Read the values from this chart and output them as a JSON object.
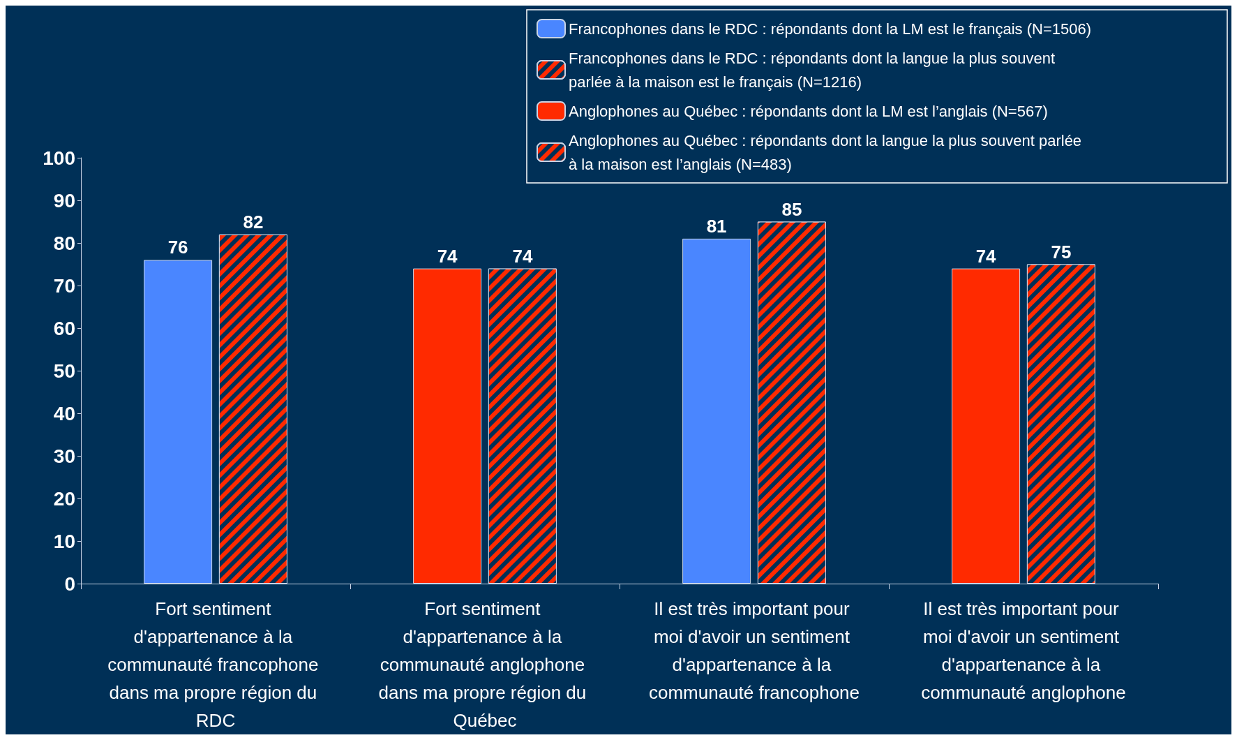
{
  "chart_data": {
    "type": "bar",
    "categories": [
      "Fort sentiment d'appartenance à la communauté francophone dans ma propre région du RDC",
      "Fort sentiment d'appartenance à la communauté anglophone dans ma propre région du Québec",
      "Il est très important pour moi d'avoir un sentiment d'appartenance à la communauté francophone",
      "Il est très important pour moi d'avoir un sentiment d'appartenance à la communauté anglophone"
    ],
    "series": [
      {
        "name": "Francophones dans le RDC : répondants dont la LM est le français (N=1506)",
        "color": "#4a86ff",
        "values": [
          76,
          null,
          81,
          null
        ]
      },
      {
        "name": "Francophones dans le RDC : répondants dont la langue la plus souvent parlée à la maison est le français (N=1216)",
        "color": "#ff2a00",
        "values": [
          82,
          null,
          85,
          null
        ]
      },
      {
        "name": "Anglophones au Québec : répondants dont la LM est l’anglais (N=567)",
        "color": "#ff2a00",
        "values": [
          null,
          74,
          null,
          74
        ]
      },
      {
        "name": "Anglophones au Québec : répondants dont la langue la plus souvent parlée à la maison est l’anglais (N=483)",
        "color": "#ff2a00",
        "values": [
          null,
          74,
          null,
          75
        ]
      }
    ],
    "ylim": [
      0,
      100
    ],
    "yticks": [
      0,
      10,
      20,
      30,
      40,
      50,
      60,
      70,
      80,
      90,
      100
    ],
    "data_labels": true,
    "grid": false,
    "legend": "top right"
  }
}
